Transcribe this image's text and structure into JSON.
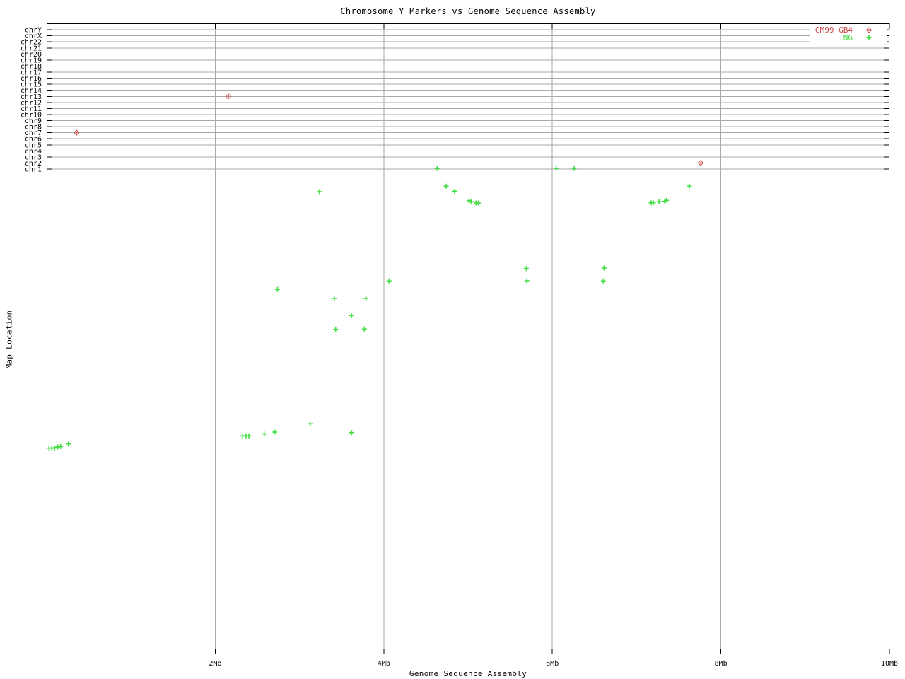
{
  "chart_data": {
    "type": "scatter",
    "title": "Chromosome Y Markers vs Genome Sequence Assembly",
    "xlabel": "Genome Sequence Assembly",
    "ylabel": "Map Location",
    "x_unit": "Mb",
    "xlim": [
      0,
      10
    ],
    "grid": true,
    "legend_position": "top-right",
    "x_ticks": [
      {
        "label": "2Mb",
        "value": 2
      },
      {
        "label": "4Mb",
        "value": 4
      },
      {
        "label": "6Mb",
        "value": 6
      },
      {
        "label": "8Mb",
        "value": 8
      },
      {
        "label": "10Mb",
        "value": 10
      }
    ],
    "y_categories": [
      "chr1",
      "chr2",
      "chr3",
      "chr4",
      "chr5",
      "chr6",
      "chr7",
      "chr8",
      "chr9",
      "chr10",
      "chr11",
      "chr12",
      "chr13",
      "chr14",
      "chr15",
      "chr16",
      "chr17",
      "chr18",
      "chr19",
      "chr20",
      "chr21",
      "chr22",
      "chrX",
      "chrY"
    ],
    "y_unit_note": "y values are in chromosome-gridline rows relative to chr1 (chr1=0, chr2=1, ... chrY=23); negative values lie in the unlabeled region below chr1",
    "series": [
      {
        "name": "GM99 GB4",
        "marker": "diamond",
        "color": "#cc4444",
        "points": [
          [
            0.355,
            6
          ],
          [
            2.156,
            12
          ],
          [
            7.76,
            1
          ]
        ]
      },
      {
        "name": "TNG",
        "marker": "plus",
        "color": "#3fdd3f",
        "points": [
          [
            4.633,
            0.1
          ],
          [
            6.046,
            0.1
          ],
          [
            6.258,
            0.1
          ],
          [
            4.74,
            -2.84
          ],
          [
            4.84,
            -3.66
          ],
          [
            5.011,
            -5.22
          ],
          [
            5.034,
            -5.37
          ],
          [
            5.095,
            -5.61
          ],
          [
            5.123,
            -5.61
          ],
          [
            7.173,
            -5.57
          ],
          [
            7.198,
            -5.57
          ],
          [
            7.268,
            -5.41
          ],
          [
            7.332,
            -5.34
          ],
          [
            7.355,
            -5.18
          ],
          [
            7.626,
            -2.84
          ],
          [
            3.236,
            -3.74
          ],
          [
            2.738,
            -19.9
          ],
          [
            3.412,
            -21.38
          ],
          [
            3.789,
            -21.38
          ],
          [
            3.616,
            -24.22
          ],
          [
            3.429,
            -26.48
          ],
          [
            3.769,
            -26.44
          ],
          [
            4.063,
            -18.49
          ],
          [
            5.691,
            -16.44
          ],
          [
            5.697,
            -18.46
          ],
          [
            6.614,
            -16.36
          ],
          [
            6.605,
            -18.49
          ],
          [
            2.326,
            -44.08
          ],
          [
            2.366,
            -44.08
          ],
          [
            2.399,
            -44.08
          ],
          [
            2.581,
            -43.77
          ],
          [
            2.707,
            -43.46
          ],
          [
            3.127,
            -42.09
          ],
          [
            3.618,
            -43.54
          ],
          [
            0.028,
            -46.11
          ],
          [
            0.061,
            -46.11
          ],
          [
            0.095,
            -46.06
          ],
          [
            0.132,
            -45.91
          ],
          [
            0.165,
            -45.83
          ],
          [
            0.258,
            -45.41
          ]
        ]
      }
    ],
    "colors": {
      "grid": "#a9a9a9",
      "border": "#000000",
      "background": "#ffffff"
    }
  }
}
